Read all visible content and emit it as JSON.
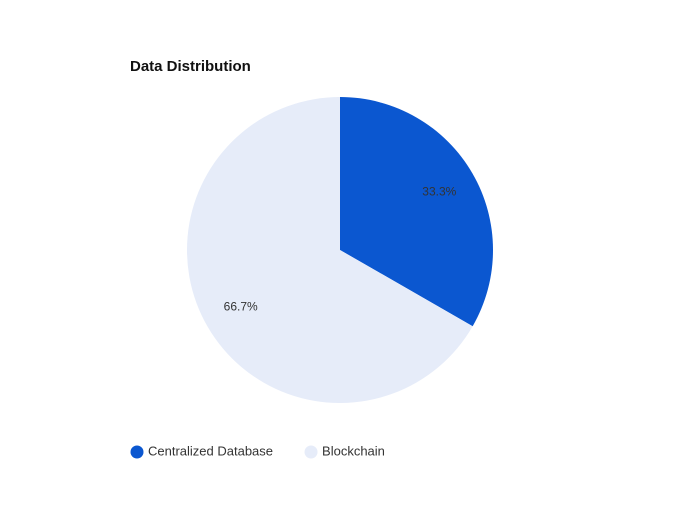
{
  "chart_data": {
    "type": "pie",
    "title": "Data Distribution",
    "categories": [
      "Centralized Database",
      "Blockchain"
    ],
    "values": [
      33.3,
      66.7
    ],
    "value_labels": [
      "33.3%",
      "66.7%"
    ],
    "colors": [
      "#0b57d0",
      "#e6ecf9"
    ]
  }
}
